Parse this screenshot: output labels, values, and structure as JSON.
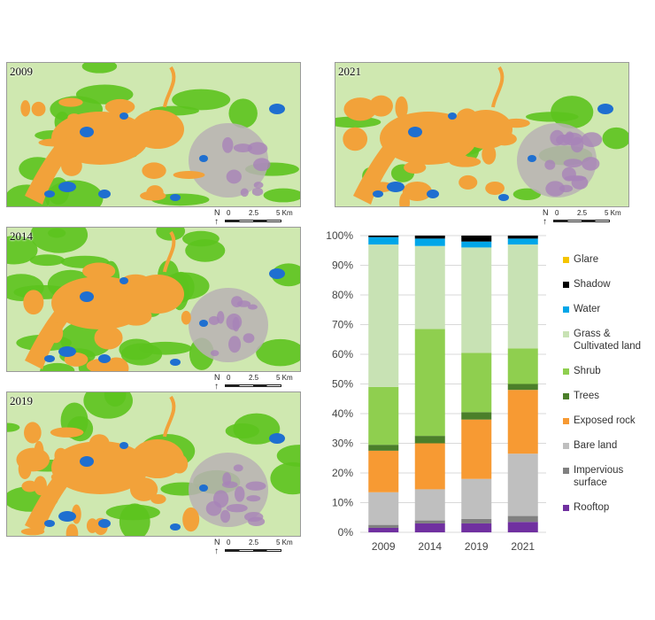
{
  "maps": [
    {
      "year": "2009",
      "scale": {
        "north": "N",
        "zero": "0",
        "mid": "2.5",
        "end": "5 Km"
      }
    },
    {
      "year": "2021",
      "scale": {
        "north": "N",
        "zero": "0",
        "mid": "2.5",
        "end": "5 Km"
      }
    },
    {
      "year": "2014",
      "scale": {
        "north": "N",
        "zero": "0",
        "mid": "2.5",
        "end": "5 Km"
      }
    },
    {
      "year": "2019",
      "scale": {
        "north": "N",
        "zero": "0",
        "mid": "2.5",
        "end": "5 Km"
      }
    }
  ],
  "map_colors": {
    "green": "#5cc31e",
    "light_green": "#cfe8b0",
    "orange": "#f2a23a",
    "blue": "#1f6fd0",
    "grey": "#b8b2b4",
    "purple": "#a883b8"
  },
  "chart_data": {
    "type": "bar",
    "stacked": true,
    "categories": [
      "2009",
      "2014",
      "2019",
      "2021"
    ],
    "ylim": [
      0,
      100
    ],
    "yticks": [
      "0%",
      "10%",
      "20%",
      "30%",
      "40%",
      "50%",
      "60%",
      "70%",
      "80%",
      "90%",
      "100%"
    ],
    "grid": true,
    "legend_position": "right",
    "series": [
      {
        "name": "Rooftop",
        "color": "#7030a0",
        "values": [
          1.5,
          3,
          3,
          3.5
        ]
      },
      {
        "name": "Impervious\nsurface",
        "color": "#808080",
        "values": [
          1,
          1,
          1.5,
          2
        ]
      },
      {
        "name": "Bare land",
        "color": "#bfbfbf",
        "values": [
          11,
          10.5,
          13.5,
          21
        ]
      },
      {
        "name": "Exposed rock",
        "color": "#f79a33",
        "values": [
          14,
          15.5,
          20,
          21.5
        ]
      },
      {
        "name": "Trees",
        "color": "#4b7f2a",
        "values": [
          2,
          2.5,
          2.5,
          2
        ]
      },
      {
        "name": "Shrub",
        "color": "#8fcf4f",
        "values": [
          19.5,
          36,
          20,
          12
        ]
      },
      {
        "name": "Grass &\nCultivated land",
        "color": "#c8e2b4",
        "values": [
          48,
          28,
          35.5,
          35
        ]
      },
      {
        "name": "Water",
        "color": "#00a6e8",
        "values": [
          2.5,
          2.5,
          2,
          2
        ]
      },
      {
        "name": "Shadow",
        "color": "#000000",
        "values": [
          0.5,
          1,
          2,
          1
        ]
      },
      {
        "name": "Glare",
        "color": "#f5c400",
        "values": [
          0,
          0,
          0,
          0
        ]
      }
    ]
  }
}
